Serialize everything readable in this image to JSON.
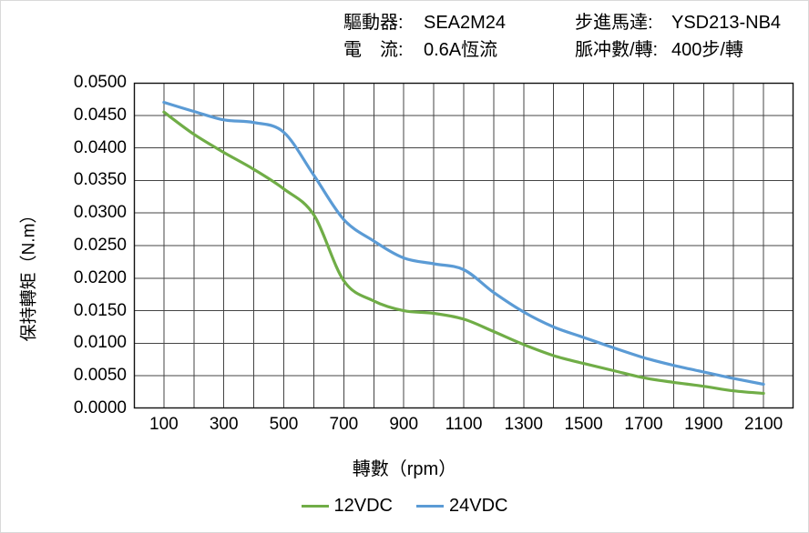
{
  "header": {
    "left": {
      "rows": [
        {
          "label": "驅動器:",
          "value": "SEA2M24"
        },
        {
          "label": "電　流:",
          "value": "0.6A恆流"
        }
      ]
    },
    "right": {
      "rows": [
        {
          "label": "步進馬達:",
          "value": "YSD213-NB4"
        },
        {
          "label": "脈冲數/轉:",
          "value": "400步/轉"
        }
      ]
    }
  },
  "colors": {
    "grid": "#444444",
    "plot_border": "#111111",
    "series_12vdc": "#70AD47",
    "series_24vdc": "#5B9BD5",
    "text": "#000000"
  },
  "chart_data": {
    "type": "line",
    "title": "",
    "xlabel": "轉數（rpm）",
    "ylabel": "保持轉矩（N.m）",
    "xlim": [
      0,
      2200
    ],
    "ylim": [
      0.0,
      0.05
    ],
    "x_grid_step": 100,
    "y_grid_step": 0.005,
    "grid": true,
    "legend_position": "bottom",
    "x": [
      100,
      200,
      300,
      400,
      500,
      600,
      700,
      800,
      900,
      1000,
      1100,
      1200,
      1300,
      1400,
      1500,
      1600,
      1700,
      1800,
      1900,
      2000,
      2100
    ],
    "series": [
      {
        "name": "12VDC",
        "color": "#70AD47",
        "values": [
          0.0455,
          0.0421,
          0.0393,
          0.0367,
          0.0337,
          0.0297,
          0.0196,
          0.0165,
          0.015,
          0.0146,
          0.0137,
          0.0118,
          0.0098,
          0.0081,
          0.0069,
          0.0058,
          0.0047,
          0.004,
          0.0034,
          0.0027,
          0.0023
        ]
      },
      {
        "name": "24VDC",
        "color": "#5B9BD5",
        "values": [
          0.047,
          0.0456,
          0.0443,
          0.0439,
          0.0424,
          0.0358,
          0.029,
          0.0257,
          0.0231,
          0.0222,
          0.0213,
          0.0178,
          0.0148,
          0.0125,
          0.0109,
          0.0093,
          0.0078,
          0.0066,
          0.0056,
          0.0046,
          0.0037
        ]
      }
    ],
    "x_ticks": [
      100,
      300,
      500,
      700,
      900,
      1100,
      1300,
      1500,
      1700,
      1900,
      2100
    ],
    "x_tick_labels": [
      "100",
      "300",
      "500",
      "700",
      "900",
      "1100",
      "1300",
      "1500",
      "1700",
      "1900",
      "2100"
    ],
    "y_ticks_top_to_bottom": [
      0.05,
      0.045,
      0.04,
      0.035,
      0.03,
      0.025,
      0.02,
      0.015,
      0.01,
      0.005,
      0.0
    ],
    "y_tick_labels_top_to_bottom": [
      "0.0500",
      "0.0450",
      "0.0400",
      "0.0350",
      "0.0300",
      "0.0250",
      "0.0200",
      "0.0150",
      "0.0100",
      "0.0050",
      "0.0000"
    ]
  }
}
